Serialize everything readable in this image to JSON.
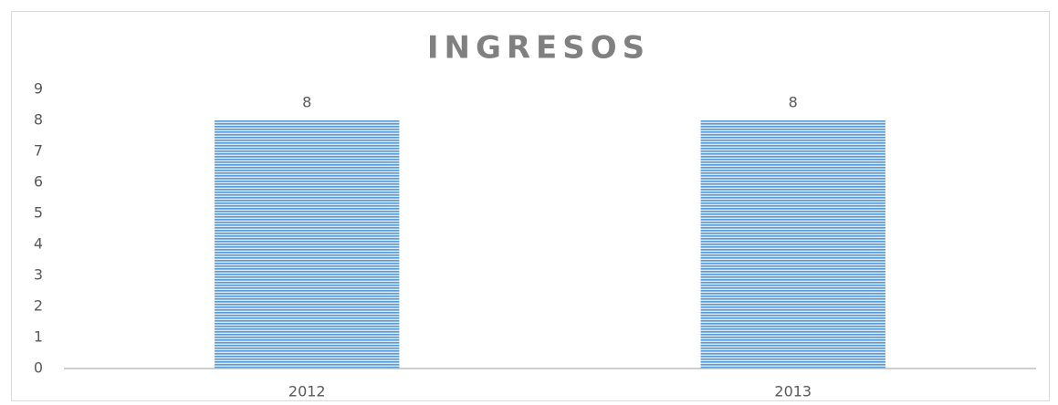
{
  "chart_data": {
    "type": "bar",
    "title": "INGRESOS",
    "categories": [
      "2012",
      "2013"
    ],
    "values": [
      8,
      8
    ],
    "color": "#5b9bd5",
    "ylim": [
      0,
      9
    ],
    "yticks": [
      0,
      1,
      2,
      3,
      4,
      5,
      6,
      7,
      8,
      9
    ],
    "grid": false,
    "data_labels": true
  }
}
